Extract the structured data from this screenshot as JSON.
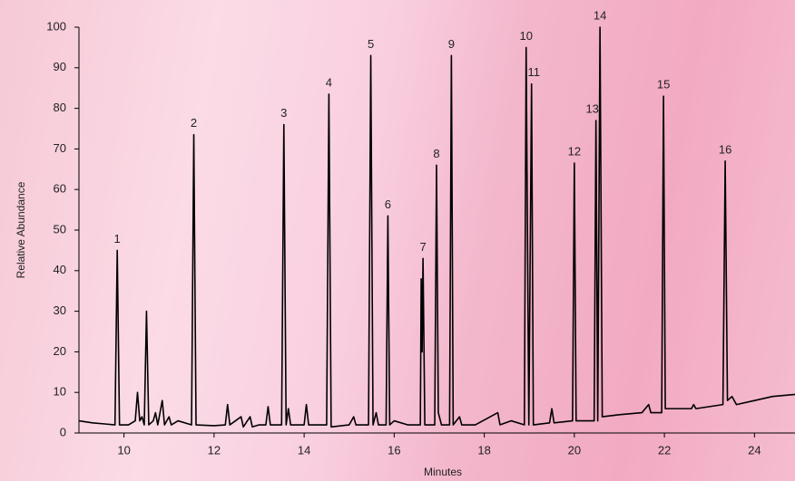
{
  "chart_data": {
    "type": "line",
    "xlabel": "Minutes",
    "ylabel": "Relative Abundance",
    "xlim": [
      9,
      24.9
    ],
    "ylim": [
      0,
      100
    ],
    "xticks": [
      10,
      12,
      14,
      16,
      18,
      20,
      22,
      24
    ],
    "yticks": [
      0,
      10,
      20,
      30,
      40,
      50,
      60,
      70,
      80,
      90,
      100
    ],
    "color": "#000000",
    "x": [
      9.0,
      9.3,
      9.6,
      9.8,
      9.85,
      9.9,
      10.1,
      10.25,
      10.3,
      10.35,
      10.4,
      10.45,
      10.5,
      10.55,
      10.65,
      10.7,
      10.75,
      10.85,
      10.9,
      11.0,
      11.05,
      11.2,
      11.5,
      11.55,
      11.6,
      12.0,
      12.25,
      12.3,
      12.35,
      12.6,
      12.65,
      12.8,
      12.85,
      13.0,
      13.15,
      13.2,
      13.25,
      13.5,
      13.55,
      13.6,
      13.65,
      13.7,
      14.0,
      14.05,
      14.1,
      14.5,
      14.55,
      14.6,
      15.0,
      15.1,
      15.15,
      15.43,
      15.48,
      15.53,
      15.6,
      15.65,
      15.82,
      15.86,
      15.9,
      16.0,
      16.3,
      16.58,
      16.6,
      16.62,
      16.64,
      16.68,
      16.9,
      16.94,
      16.98,
      17.05,
      17.23,
      17.27,
      17.31,
      17.45,
      17.5,
      17.8,
      18.3,
      18.35,
      18.6,
      18.89,
      18.93,
      18.99,
      19.05,
      19.09,
      19.45,
      19.5,
      19.55,
      19.96,
      20.0,
      20.04,
      20.44,
      20.48,
      20.52,
      20.57,
      20.62,
      21.0,
      21.5,
      21.65,
      21.7,
      21.94,
      21.98,
      22.02,
      22.6,
      22.65,
      22.7,
      23.3,
      23.35,
      23.4,
      23.5,
      23.6,
      24.0,
      24.4,
      24.9
    ],
    "values": [
      3,
      2.5,
      2.2,
      2,
      45,
      2,
      2,
      3,
      10,
      3,
      4,
      2,
      30,
      2,
      3,
      5,
      2,
      8,
      2,
      4,
      2,
      3,
      2,
      73.5,
      2,
      1.8,
      2,
      7,
      2,
      4,
      1.5,
      4,
      1.5,
      2,
      2,
      6.5,
      2,
      2,
      76,
      2,
      6,
      2,
      2,
      7,
      2,
      2,
      83.5,
      1.5,
      2,
      4,
      2,
      2,
      93,
      2,
      5,
      2,
      2,
      53.5,
      2,
      3,
      2,
      2,
      38,
      20,
      43,
      2,
      2,
      66,
      5,
      2,
      2,
      93,
      2,
      4,
      2,
      2,
      5,
      2,
      3,
      2,
      95,
      2,
      86,
      2,
      2.5,
      6,
      2.5,
      3,
      66.5,
      3,
      3,
      77,
      3,
      100,
      4,
      4.5,
      5,
      7,
      5,
      5,
      83,
      6,
      6,
      7,
      6,
      7,
      67,
      8,
      9,
      7,
      8,
      9,
      9.5
    ],
    "annotations": [
      {
        "text": "1",
        "x": 9.85,
        "y": 45
      },
      {
        "text": "2",
        "x": 11.55,
        "y": 73.5
      },
      {
        "text": "3",
        "x": 13.55,
        "y": 76
      },
      {
        "text": "4",
        "x": 14.55,
        "y": 83.5
      },
      {
        "text": "5",
        "x": 15.48,
        "y": 93
      },
      {
        "text": "6",
        "x": 15.86,
        "y": 53.5
      },
      {
        "text": "7",
        "x": 16.64,
        "y": 43
      },
      {
        "text": "8",
        "x": 16.94,
        "y": 66
      },
      {
        "text": "9",
        "x": 17.27,
        "y": 93
      },
      {
        "text": "10",
        "x": 18.93,
        "y": 95
      },
      {
        "text": "11",
        "x": 19.1,
        "y": 86
      },
      {
        "text": "12",
        "x": 20.0,
        "y": 66.5
      },
      {
        "text": "13",
        "x": 20.4,
        "y": 77
      },
      {
        "text": "14",
        "x": 20.57,
        "y": 100
      },
      {
        "text": "15",
        "x": 21.98,
        "y": 83
      },
      {
        "text": "16",
        "x": 23.35,
        "y": 67
      }
    ]
  }
}
